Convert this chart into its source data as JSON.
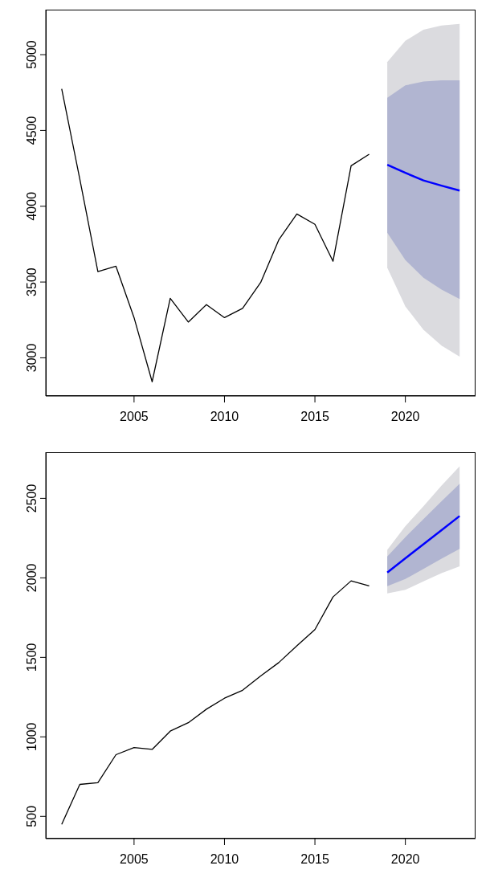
{
  "chart_data": [
    {
      "type": "line",
      "xlim": [
        2000.12,
        2023.88
      ],
      "xticks": [
        2005,
        2010,
        2015,
        2020
      ],
      "ylim": [
        2748,
        5297
      ],
      "yticks": [
        3000,
        3500,
        4000,
        4500,
        5000
      ],
      "grid": false,
      "legend": false,
      "series": [
        {
          "color": "#000000",
          "x": [
            2001,
            2002,
            2003,
            2004,
            2005,
            2006,
            2007,
            2008,
            2009,
            2010,
            2011,
            2012,
            2013,
            2014,
            2015,
            2016,
            2017,
            2018
          ],
          "values": [
            4774,
            4180,
            3569,
            3604,
            3265,
            2842,
            3392,
            3236,
            3351,
            3265,
            3326,
            3497,
            3778,
            3949,
            3881,
            3637,
            4267,
            4343
          ]
        },
        {
          "type": "area",
          "color": "#dbdbdf",
          "x": [
            2019,
            2020,
            2021,
            2022,
            2023
          ],
          "values": [
            null,
            null,
            null,
            null,
            null
          ],
          "lower": [
            3595,
            3339,
            3185,
            3080,
            3008
          ],
          "upper": [
            4951,
            5092,
            5165,
            5192,
            5203
          ]
        },
        {
          "type": "area",
          "color": "#b1b5d1",
          "x": [
            2019,
            2020,
            2021,
            2022,
            2023
          ],
          "values": [
            null,
            null,
            null,
            null,
            null
          ],
          "lower": [
            3825,
            3645,
            3528,
            3450,
            3388
          ],
          "upper": [
            4715,
            4797,
            4823,
            4830,
            4830
          ]
        },
        {
          "color": "#0000ff",
          "x": [
            2019,
            2020,
            2021,
            2022,
            2023
          ],
          "values": [
            4273,
            4220,
            4170,
            4136,
            4103
          ]
        }
      ]
    },
    {
      "type": "line",
      "xlim": [
        2000.12,
        2023.88
      ],
      "xticks": [
        2005,
        2010,
        2015,
        2020
      ],
      "ylim": [
        360,
        2790
      ],
      "yticks": [
        500,
        1000,
        1500,
        2000,
        2500
      ],
      "grid": false,
      "legend": false,
      "series": [
        {
          "color": "#000000",
          "x": [
            2001,
            2002,
            2003,
            2004,
            2005,
            2006,
            2007,
            2008,
            2009,
            2010,
            2011,
            2012,
            2013,
            2014,
            2015,
            2016,
            2017,
            2018
          ],
          "values": [
            450,
            701,
            712,
            888,
            933,
            921,
            1036,
            1089,
            1174,
            1243,
            1293,
            1383,
            1467,
            1572,
            1675,
            1880,
            1981,
            1950
          ]
        },
        {
          "type": "area",
          "color": "#dbdbdf",
          "x": [
            2019,
            2020,
            2021,
            2022,
            2023
          ],
          "values": [
            null,
            null,
            null,
            null,
            null
          ],
          "lower": [
            1902,
            1925,
            1978,
            2030,
            2073
          ],
          "upper": [
            2176,
            2325,
            2450,
            2580,
            2701
          ]
        },
        {
          "type": "area",
          "color": "#b1b5d1",
          "x": [
            2019,
            2020,
            2021,
            2022,
            2023
          ],
          "values": [
            null,
            null,
            null,
            null,
            null
          ],
          "lower": [
            1948,
            1993,
            2056,
            2120,
            2182
          ],
          "upper": [
            2134,
            2256,
            2370,
            2482,
            2592
          ]
        },
        {
          "color": "#0000ff",
          "x": [
            2019,
            2020,
            2021,
            2022,
            2023
          ],
          "values": [
            2034,
            2123,
            2212,
            2300,
            2389
          ]
        }
      ]
    }
  ]
}
